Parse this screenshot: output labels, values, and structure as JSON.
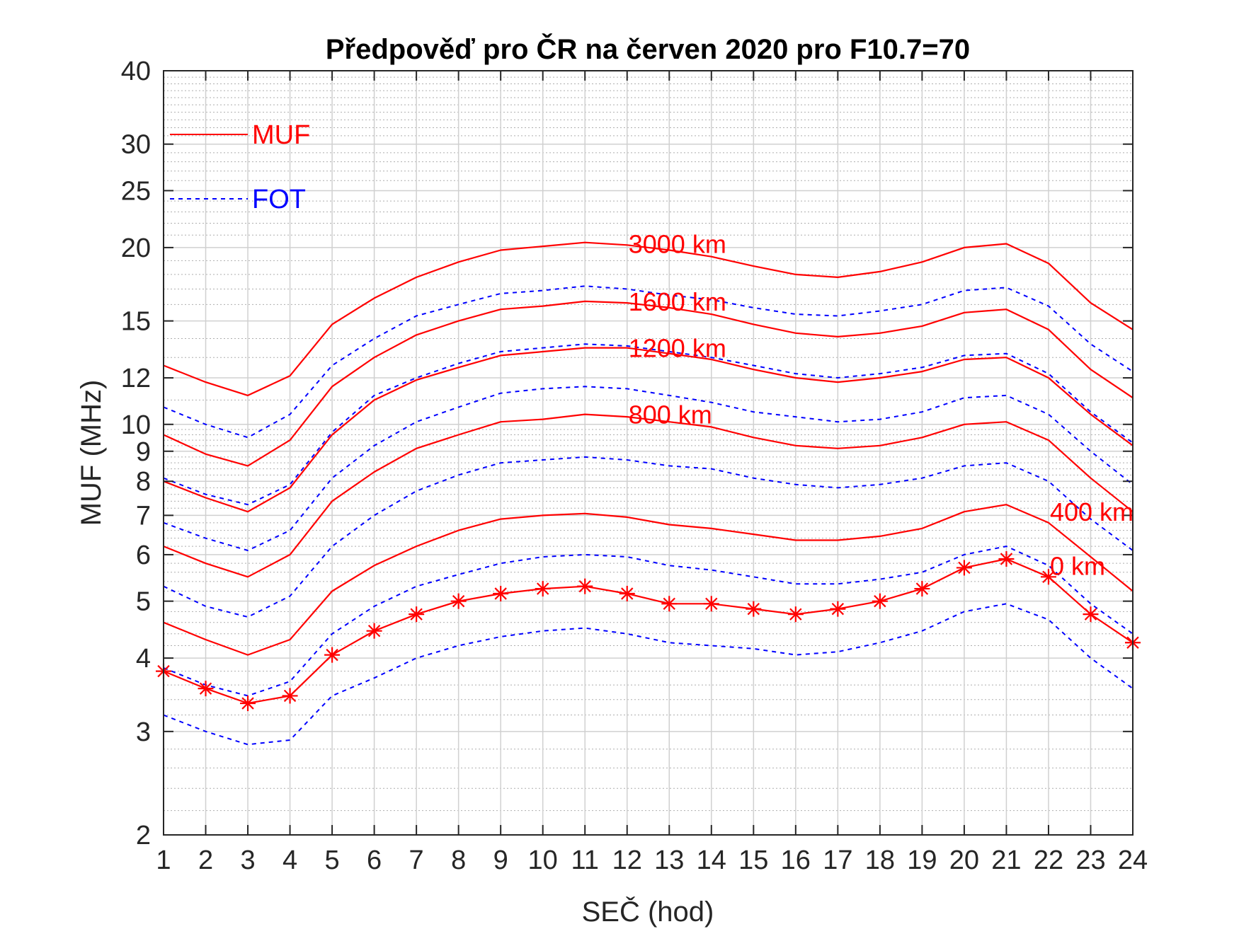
{
  "chart_data": {
    "type": "line",
    "title": "Předpověď pro ČR na červen 2020 pro F10.7=70",
    "xlabel": "SEČ (hod)",
    "ylabel": "MUF (MHz)",
    "yscale": "log",
    "xlim": [
      1,
      24
    ],
    "ylim": [
      2,
      40
    ],
    "grid": true,
    "x": [
      1,
      2,
      3,
      4,
      5,
      6,
      7,
      8,
      9,
      10,
      11,
      12,
      13,
      14,
      15,
      16,
      17,
      18,
      19,
      20,
      21,
      22,
      23,
      24
    ],
    "xticks": [
      "1",
      "2",
      "3",
      "4",
      "5",
      "6",
      "7",
      "8",
      "9",
      "10",
      "11",
      "12",
      "13",
      "14",
      "15",
      "16",
      "17",
      "18",
      "19",
      "20",
      "21",
      "22",
      "23",
      "24"
    ],
    "yticks": [
      {
        "value": 2,
        "label": "2"
      },
      {
        "value": 3,
        "label": "3"
      },
      {
        "value": 4,
        "label": "4"
      },
      {
        "value": 5,
        "label": "5"
      },
      {
        "value": 6,
        "label": "6"
      },
      {
        "value": 7,
        "label": "7"
      },
      {
        "value": 8,
        "label": "8"
      },
      {
        "value": 9,
        "label": "9"
      },
      {
        "value": 10,
        "label": "10"
      },
      {
        "value": 12,
        "label": "12"
      },
      {
        "value": 15,
        "label": "15"
      },
      {
        "value": 20,
        "label": "20"
      },
      {
        "value": 25,
        "label": "25"
      },
      {
        "value": 30,
        "label": "30"
      },
      {
        "value": 40,
        "label": "40"
      }
    ],
    "legend": {
      "placement": "top-left",
      "entries": [
        {
          "label": "MUF",
          "color": "#ff0000",
          "style": "solid"
        },
        {
          "label": "FOT",
          "color": "#0000ff",
          "style": "dashed"
        }
      ]
    },
    "series": [
      {
        "kind": "MUF",
        "color": "#ff0000",
        "style": "solid",
        "marker": "none",
        "values": [
          12.6,
          11.8,
          11.2,
          12.1,
          14.8,
          16.4,
          17.8,
          18.9,
          19.8,
          20.1,
          20.4,
          20.2,
          19.8,
          19.3,
          18.6,
          18.0,
          17.8,
          18.2,
          18.9,
          20.0,
          20.3,
          18.8,
          16.1,
          14.5
        ]
      },
      {
        "kind": "FOT",
        "color": "#0000ff",
        "style": "dashed",
        "marker": "none",
        "values": [
          10.7,
          10.0,
          9.5,
          10.4,
          12.6,
          14.0,
          15.3,
          16.0,
          16.7,
          16.9,
          17.2,
          17.0,
          16.6,
          16.3,
          15.8,
          15.4,
          15.3,
          15.6,
          16.0,
          16.9,
          17.1,
          15.9,
          13.7,
          12.3
        ]
      },
      {
        "kind": "MUF",
        "color": "#ff0000",
        "style": "solid",
        "marker": "none",
        "values": [
          9.6,
          8.9,
          8.5,
          9.4,
          11.6,
          13.0,
          14.2,
          15.0,
          15.7,
          15.9,
          16.2,
          16.1,
          15.8,
          15.4,
          14.8,
          14.3,
          14.1,
          14.3,
          14.7,
          15.5,
          15.7,
          14.5,
          12.4,
          11.1
        ]
      },
      {
        "kind": "FOT",
        "color": "#0000ff",
        "style": "dashed",
        "marker": "none",
        "values": [
          8.1,
          7.6,
          7.3,
          7.9,
          9.7,
          11.2,
          12.0,
          12.7,
          13.3,
          13.5,
          13.7,
          13.6,
          13.3,
          13.0,
          12.6,
          12.2,
          12.0,
          12.2,
          12.5,
          13.1,
          13.2,
          12.2,
          10.5,
          9.3
        ]
      },
      {
        "kind": "MUF",
        "color": "#ff0000",
        "style": "solid",
        "marker": "none",
        "values": [
          8.0,
          7.5,
          7.1,
          7.8,
          9.6,
          11.0,
          11.9,
          12.5,
          13.1,
          13.3,
          13.5,
          13.5,
          13.2,
          12.9,
          12.4,
          12.0,
          11.8,
          12.0,
          12.3,
          12.9,
          13.0,
          12.0,
          10.4,
          9.2
        ]
      },
      {
        "kind": "FOT",
        "color": "#0000ff",
        "style": "dashed",
        "marker": "none",
        "values": [
          6.8,
          6.4,
          6.1,
          6.6,
          8.1,
          9.2,
          10.1,
          10.7,
          11.3,
          11.5,
          11.6,
          11.5,
          11.2,
          10.9,
          10.5,
          10.3,
          10.1,
          10.2,
          10.5,
          11.1,
          11.2,
          10.4,
          9.0,
          7.9
        ]
      },
      {
        "kind": "MUF",
        "color": "#ff0000",
        "style": "solid",
        "marker": "none",
        "values": [
          6.2,
          5.8,
          5.5,
          6.0,
          7.4,
          8.3,
          9.1,
          9.6,
          10.1,
          10.2,
          10.4,
          10.3,
          10.1,
          9.9,
          9.5,
          9.2,
          9.1,
          9.2,
          9.5,
          10.0,
          10.1,
          9.4,
          8.1,
          7.1
        ]
      },
      {
        "kind": "FOT",
        "color": "#0000ff",
        "style": "dashed",
        "marker": "none",
        "values": [
          5.3,
          4.9,
          4.7,
          5.1,
          6.2,
          7.0,
          7.7,
          8.2,
          8.6,
          8.7,
          8.8,
          8.7,
          8.5,
          8.4,
          8.1,
          7.9,
          7.8,
          7.9,
          8.1,
          8.5,
          8.6,
          8.0,
          6.9,
          6.1
        ]
      },
      {
        "kind": "MUF",
        "color": "#ff0000",
        "style": "solid",
        "marker": "none",
        "values": [
          4.6,
          4.3,
          4.05,
          4.3,
          5.2,
          5.75,
          6.2,
          6.6,
          6.9,
          7.0,
          7.05,
          6.95,
          6.75,
          6.65,
          6.5,
          6.35,
          6.35,
          6.45,
          6.65,
          7.1,
          7.3,
          6.8,
          5.95,
          5.2
        ]
      },
      {
        "kind": "FOT",
        "color": "#0000ff",
        "style": "dashed",
        "marker": "none",
        "values": [
          3.85,
          3.6,
          3.45,
          3.65,
          4.4,
          4.9,
          5.3,
          5.55,
          5.8,
          5.95,
          6.0,
          5.95,
          5.75,
          5.65,
          5.5,
          5.35,
          5.35,
          5.45,
          5.6,
          6.0,
          6.2,
          5.75,
          4.95,
          4.4
        ]
      },
      {
        "kind": "MUF",
        "color": "#ff0000",
        "style": "solid",
        "marker": "asterisk",
        "values": [
          3.8,
          3.55,
          3.35,
          3.45,
          4.05,
          4.45,
          4.75,
          5.0,
          5.15,
          5.25,
          5.3,
          5.15,
          4.95,
          4.95,
          4.85,
          4.75,
          4.85,
          5.0,
          5.25,
          5.7,
          5.9,
          5.5,
          4.75,
          4.25
        ]
      },
      {
        "kind": "FOT",
        "color": "#0000ff",
        "style": "dashed",
        "marker": "none",
        "values": [
          3.2,
          3.0,
          2.85,
          2.9,
          3.45,
          3.7,
          4.0,
          4.2,
          4.35,
          4.45,
          4.5,
          4.4,
          4.25,
          4.2,
          4.15,
          4.05,
          4.1,
          4.25,
          4.45,
          4.8,
          4.95,
          4.65,
          4.0,
          3.55
        ]
      }
    ],
    "annotations": [
      {
        "text": "3000 km",
        "x": 12,
        "y": 20.3,
        "color": "#ff0000"
      },
      {
        "text": "1600 km",
        "x": 12,
        "y": 16.2,
        "color": "#ff0000"
      },
      {
        "text": "1200 km",
        "x": 12,
        "y": 13.5,
        "color": "#ff0000"
      },
      {
        "text": "800 km",
        "x": 12,
        "y": 10.4,
        "color": "#ff0000"
      },
      {
        "text": "400 km",
        "x": 22,
        "y": 7.1,
        "color": "#ff0000"
      },
      {
        "text": "0 km",
        "x": 22,
        "y": 5.75,
        "color": "#ff0000"
      }
    ]
  }
}
